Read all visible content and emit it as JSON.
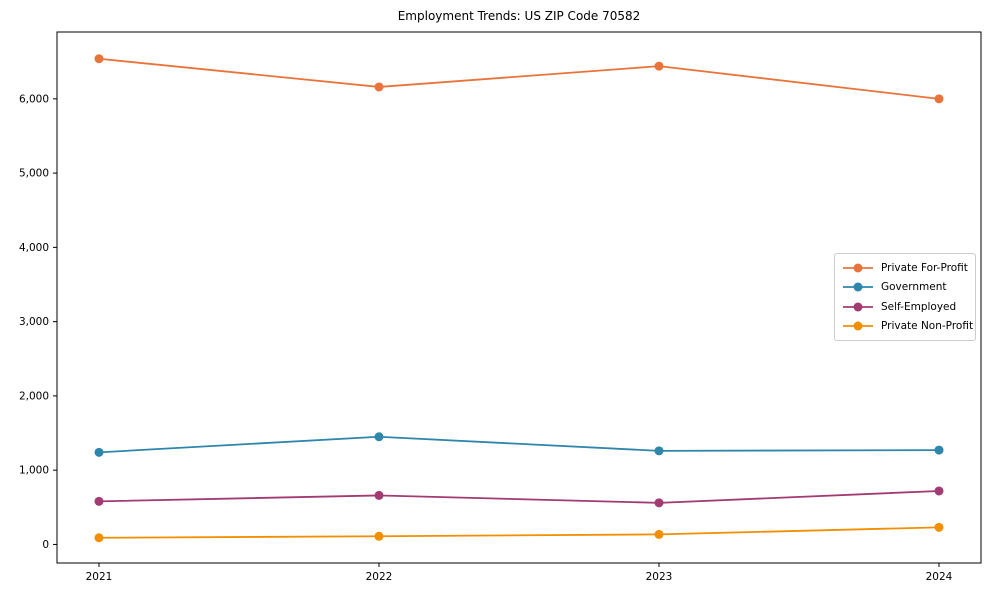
{
  "chart_data": {
    "type": "line",
    "title": "Employment Trends: US ZIP Code 70582",
    "xlabel": "",
    "ylabel": "",
    "x": [
      2021,
      2022,
      2023,
      2024
    ],
    "x_tick_labels": [
      "2021",
      "2022",
      "2023",
      "2024"
    ],
    "series": [
      {
        "name": "Private For-Profit",
        "color": "#E8743B",
        "values": [
          6540,
          6160,
          6440,
          6000
        ]
      },
      {
        "name": "Government",
        "color": "#2E86AB",
        "values": [
          1240,
          1450,
          1260,
          1270
        ]
      },
      {
        "name": "Self-Employed",
        "color": "#A23B72",
        "values": [
          580,
          660,
          560,
          720
        ]
      },
      {
        "name": "Private Non-Profit",
        "color": "#F18F01",
        "values": [
          90,
          110,
          135,
          230
        ]
      }
    ],
    "y_ticks": [
      0,
      1000,
      2000,
      3000,
      4000,
      5000,
      6000
    ],
    "y_tick_labels": [
      "0",
      "1,000",
      "2,000",
      "3,000",
      "4,000",
      "5,000",
      "6,000"
    ],
    "xlim": [
      2020.85,
      2024.15
    ],
    "ylim": [
      -250,
      6900
    ],
    "grid": false,
    "legend_position": "center-right",
    "plot_border_color": "#000000",
    "background_color": "#ffffff"
  }
}
